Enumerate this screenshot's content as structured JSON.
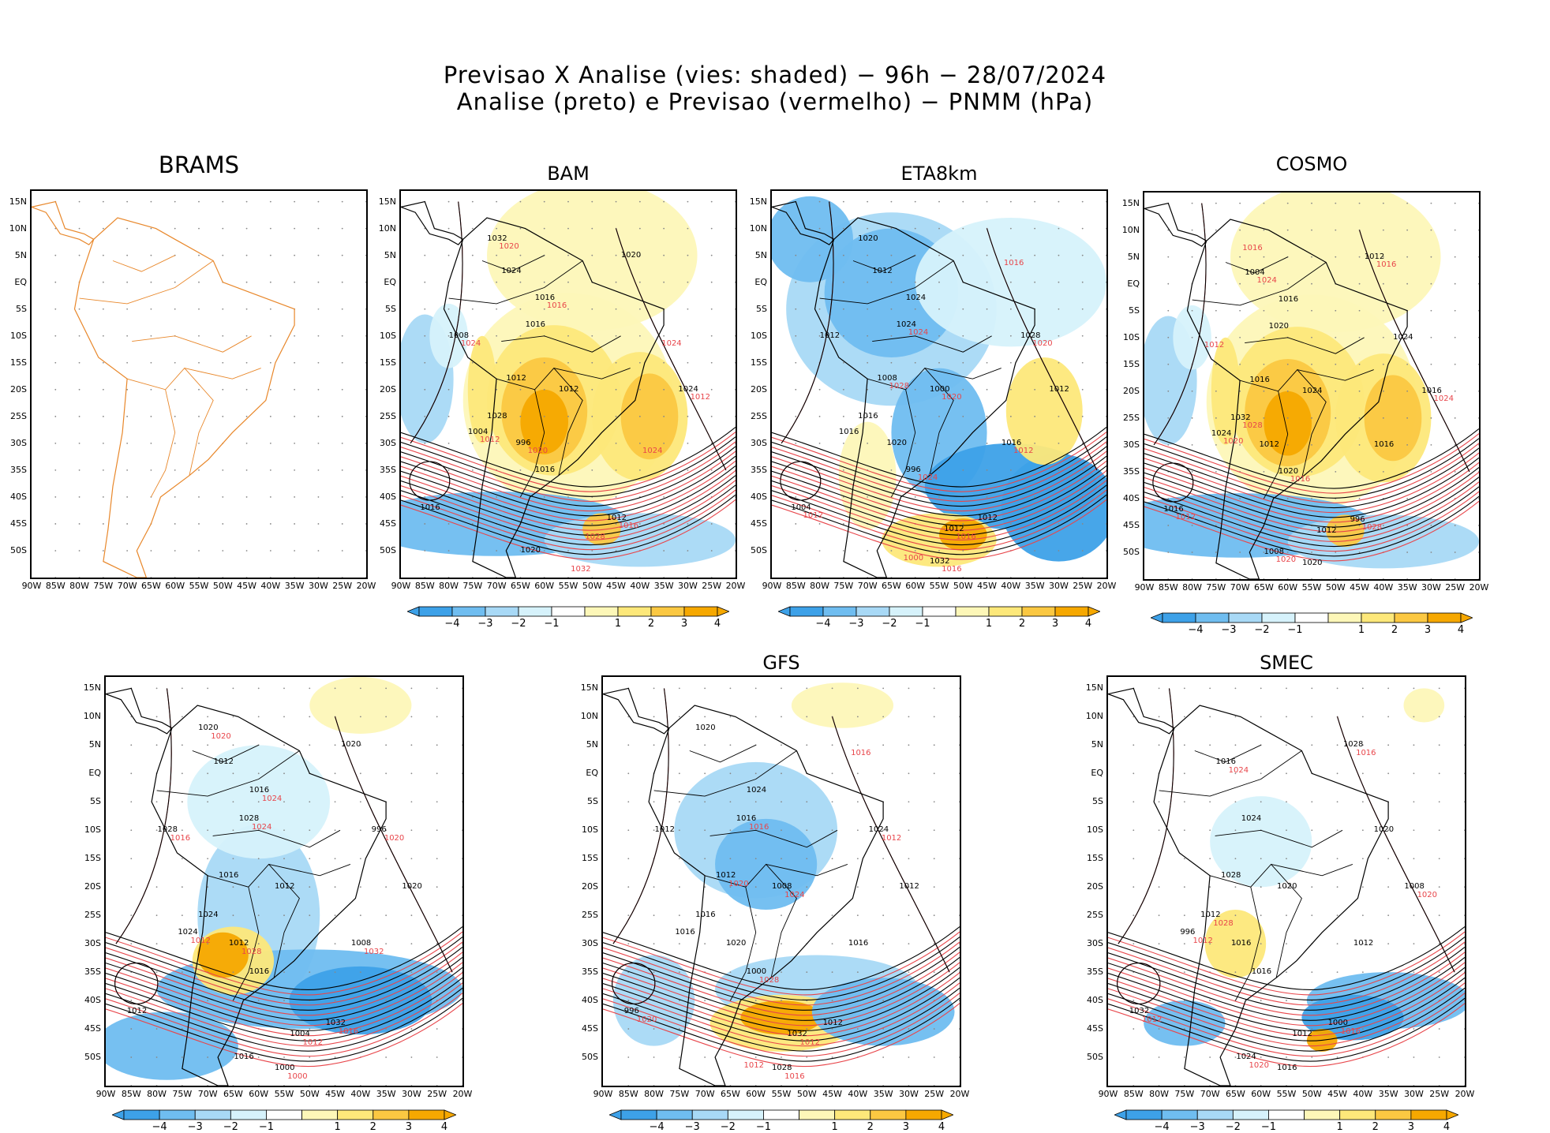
{
  "title_line1": "Previsao X Analise (vies: shaded) − 96h − 28/07/2024",
  "title_line2": "Analise (preto) e Previsao (vermelho) − PNMM (hPa)",
  "lat_labels": [
    "15N",
    "10N",
    "5N",
    "EQ",
    "5S",
    "10S",
    "15S",
    "20S",
    "25S",
    "30S",
    "35S",
    "40S",
    "45S",
    "50S"
  ],
  "lon_labels": [
    "90W",
    "85W",
    "80W",
    "75W",
    "70W",
    "65W",
    "60W",
    "55W",
    "50W",
    "45W",
    "40W",
    "35W",
    "30W",
    "25W",
    "20W"
  ],
  "colorbar_labels": [
    "−4",
    "−3",
    "−2",
    "−1",
    "1",
    "2",
    "3",
    "4"
  ],
  "colors": {
    "neg": [
      "#3da1e8",
      "#6fbdf0",
      "#a8d9f6",
      "#d6f2fb"
    ],
    "pos": [
      "#fdf7b8",
      "#fde87a",
      "#fbc842",
      "#f6a800"
    ],
    "analysis_contour": "#000000",
    "forecast_contour": "#e8454a",
    "coastline_brams": "#e8872a"
  },
  "panels": [
    {
      "name": "BRAMS",
      "style": "coast-only",
      "colorbar": false
    },
    {
      "name": "BAM",
      "style": "warm",
      "colorbar": true,
      "labels_black": [
        "1016",
        "1012",
        "1012",
        "1016",
        "1016",
        "1020",
        "1020",
        "1024",
        "1028",
        "1024",
        "1012",
        "1004",
        "1008",
        "1032",
        "1016",
        "996"
      ],
      "labels_red": [
        "1012",
        "1016",
        "1012",
        "1024",
        "1020",
        "1016",
        "1020",
        "1024",
        "1028",
        "1032",
        "1024"
      ]
    },
    {
      "name": "ETA8km",
      "style": "cool",
      "colorbar": true,
      "labels_black": [
        "1012",
        "1016",
        "1012",
        "1012",
        "1016",
        "1012",
        "1020",
        "1024",
        "1020",
        "1016",
        "1012",
        "1032",
        "1028",
        "1024",
        "1008",
        "1000",
        "996",
        "1004"
      ],
      "labels_red": [
        "1012",
        "1016",
        "1016",
        "1020",
        "1024",
        "1028",
        "1020",
        "1024",
        "1012",
        "1016",
        "1000"
      ]
    },
    {
      "name": "COSMO",
      "style": "warm",
      "colorbar": true,
      "labels_black": [
        "1016",
        "1012",
        "1016",
        "1012",
        "1020",
        "1024",
        "1020",
        "1016",
        "1024",
        "1020",
        "1016",
        "1012",
        "1008",
        "1004",
        "1032",
        "1016",
        "996",
        "1024"
      ],
      "labels_red": [
        "1016",
        "1012",
        "1016",
        "1020",
        "1024",
        "1028",
        "1024",
        "1028",
        "1020",
        "1012",
        "1016"
      ]
    },
    {
      "name": "",
      "style": "mixed",
      "colorbar": true,
      "labels_black": [
        "1016",
        "1012",
        "1016",
        "1012",
        "1020",
        "1016",
        "1012",
        "1024",
        "1020",
        "1032",
        "1024",
        "1028",
        "1020",
        "1016",
        "1012",
        "1008",
        "1004",
        "1000",
        "996",
        "1028"
      ],
      "labels_red": [
        "1016",
        "1012",
        "1016",
        "1020",
        "1024",
        "1028",
        "1032",
        "1012",
        "1000",
        "1020",
        "1024"
      ]
    },
    {
      "name": "GFS",
      "style": "cool-s",
      "colorbar": true,
      "labels_black": [
        "1016",
        "1012",
        "1012",
        "1016",
        "1012",
        "1020",
        "1024",
        "1020",
        "1016",
        "1032",
        "1028",
        "1024",
        "1016",
        "1012",
        "1008",
        "1000",
        "996"
      ],
      "labels_red": [
        "1012",
        "1016",
        "1012",
        "1016",
        "1020",
        "1024",
        "1028",
        "1020",
        "1016",
        "1012"
      ]
    },
    {
      "name": "SMEC",
      "style": "light",
      "colorbar": true,
      "labels_black": [
        "1016",
        "1012",
        "1012",
        "1016",
        "1020",
        "1024",
        "1028",
        "1020",
        "1016",
        "1032",
        "1028",
        "1024",
        "1016",
        "1012",
        "1008",
        "1000",
        "996"
      ],
      "labels_red": [
        "1012",
        "1016",
        "1020",
        "1024",
        "1028",
        "1020",
        "1016",
        "1012"
      ]
    }
  ]
}
